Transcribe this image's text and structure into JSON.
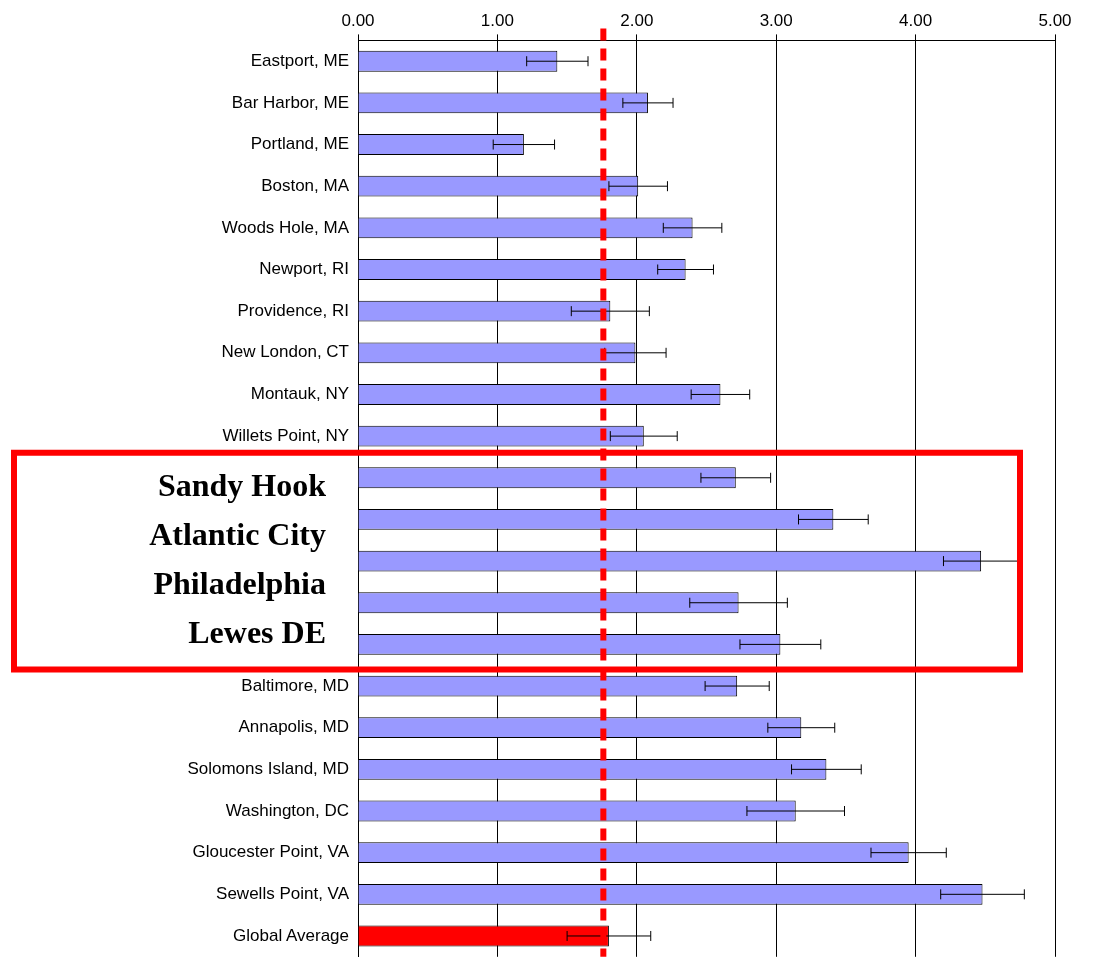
{
  "chart_data": {
    "type": "bar",
    "orientation": "horizontal",
    "categories": [
      "Eastport, ME",
      "Bar Harbor, ME",
      "Portland, ME",
      "Boston, MA",
      "Woods Hole, MA",
      "Newport, RI",
      "Providence, RI",
      "New London, CT",
      "Montauk, NY",
      "Willets Point, NY",
      null,
      null,
      null,
      null,
      null,
      "Baltimore, MD",
      "Annapolis, MD",
      "Solomons Island, MD",
      "Washington, DC",
      "Gloucester Point, VA",
      "Sewells Point, VA",
      "Global Average"
    ],
    "values": [
      1.43,
      2.08,
      1.19,
      2.01,
      2.4,
      2.35,
      1.81,
      1.99,
      2.6,
      2.05,
      2.71,
      3.41,
      4.47,
      2.73,
      3.03,
      2.72,
      3.18,
      3.36,
      3.14,
      3.95,
      4.48,
      1.8
    ],
    "errors": [
      0.22,
      0.18,
      0.22,
      0.21,
      0.21,
      0.2,
      0.28,
      0.22,
      0.21,
      0.24,
      0.25,
      0.25,
      0.27,
      0.35,
      0.29,
      0.23,
      0.24,
      0.25,
      0.35,
      0.27,
      0.3,
      0.3
    ],
    "colors": [
      "#9999ff",
      "#9999ff",
      "#9999ff",
      "#9999ff",
      "#9999ff",
      "#9999ff",
      "#9999ff",
      "#9999ff",
      "#9999ff",
      "#9999ff",
      "#9999ff",
      "#9999ff",
      "#9999ff",
      "#9999ff",
      "#9999ff",
      "#9999ff",
      "#9999ff",
      "#9999ff",
      "#9999ff",
      "#9999ff",
      "#9999ff",
      "#ff0000"
    ],
    "xlim": [
      0,
      5
    ],
    "xticks": [
      {
        "value": 0,
        "label": "0.00"
      },
      {
        "value": 1,
        "label": "1.00"
      },
      {
        "value": 2,
        "label": "2.00"
      },
      {
        "value": 3,
        "label": "3.00"
      },
      {
        "value": 4,
        "label": "4.00"
      },
      {
        "value": 5,
        "label": "5.00"
      }
    ],
    "grid": "x",
    "legend": false,
    "ref_lines": [
      {
        "axis": "x",
        "value": 1.76,
        "color": "#ff0000",
        "line_style": "dashed"
      }
    ],
    "annotations": [
      "Sandy Hook",
      "Atlantic City",
      "Philadelphia",
      "Lewes DE"
    ]
  }
}
